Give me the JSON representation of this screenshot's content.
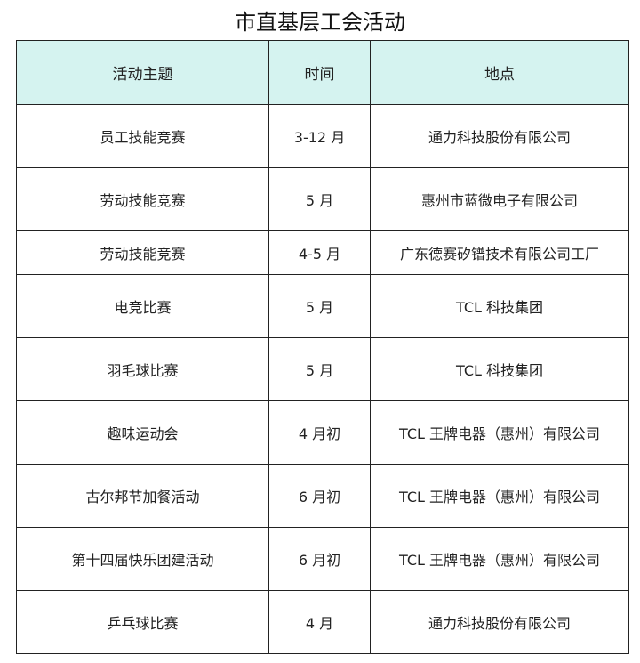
{
  "title": "市直基层工会活动",
  "header_color": "#d5f3f0",
  "columns": [
    "活动主题",
    "时间",
    "地点"
  ],
  "rows": [
    [
      "员工技能竞赛",
      "3-12 月",
      "通力科技股份有限公司"
    ],
    [
      "劳动技能竞赛",
      "5 月",
      "惠州市蓝微电子有限公司"
    ],
    [
      "劳动技能竞赛",
      "4-5 月",
      "广东德赛矽镨技术有限公司工厂"
    ],
    [
      "电竞比赛",
      "5 月",
      "TCL 科技集团"
    ],
    [
      "羽毛球比赛",
      "5 月",
      "TCL 科技集团"
    ],
    [
      "趣味运动会",
      "4 月初",
      "TCL 王牌电器（惠州）有限公司"
    ],
    [
      "古尔邦节加餐活动",
      "6 月初",
      "TCL 王牌电器（惠州）有限公司"
    ],
    [
      "第十四届快乐团建活动",
      "6 月初",
      "TCL 王牌电器（惠州）有限公司"
    ],
    [
      "乒乓球比赛",
      "4 月",
      "通力科技股份有限公司"
    ]
  ]
}
